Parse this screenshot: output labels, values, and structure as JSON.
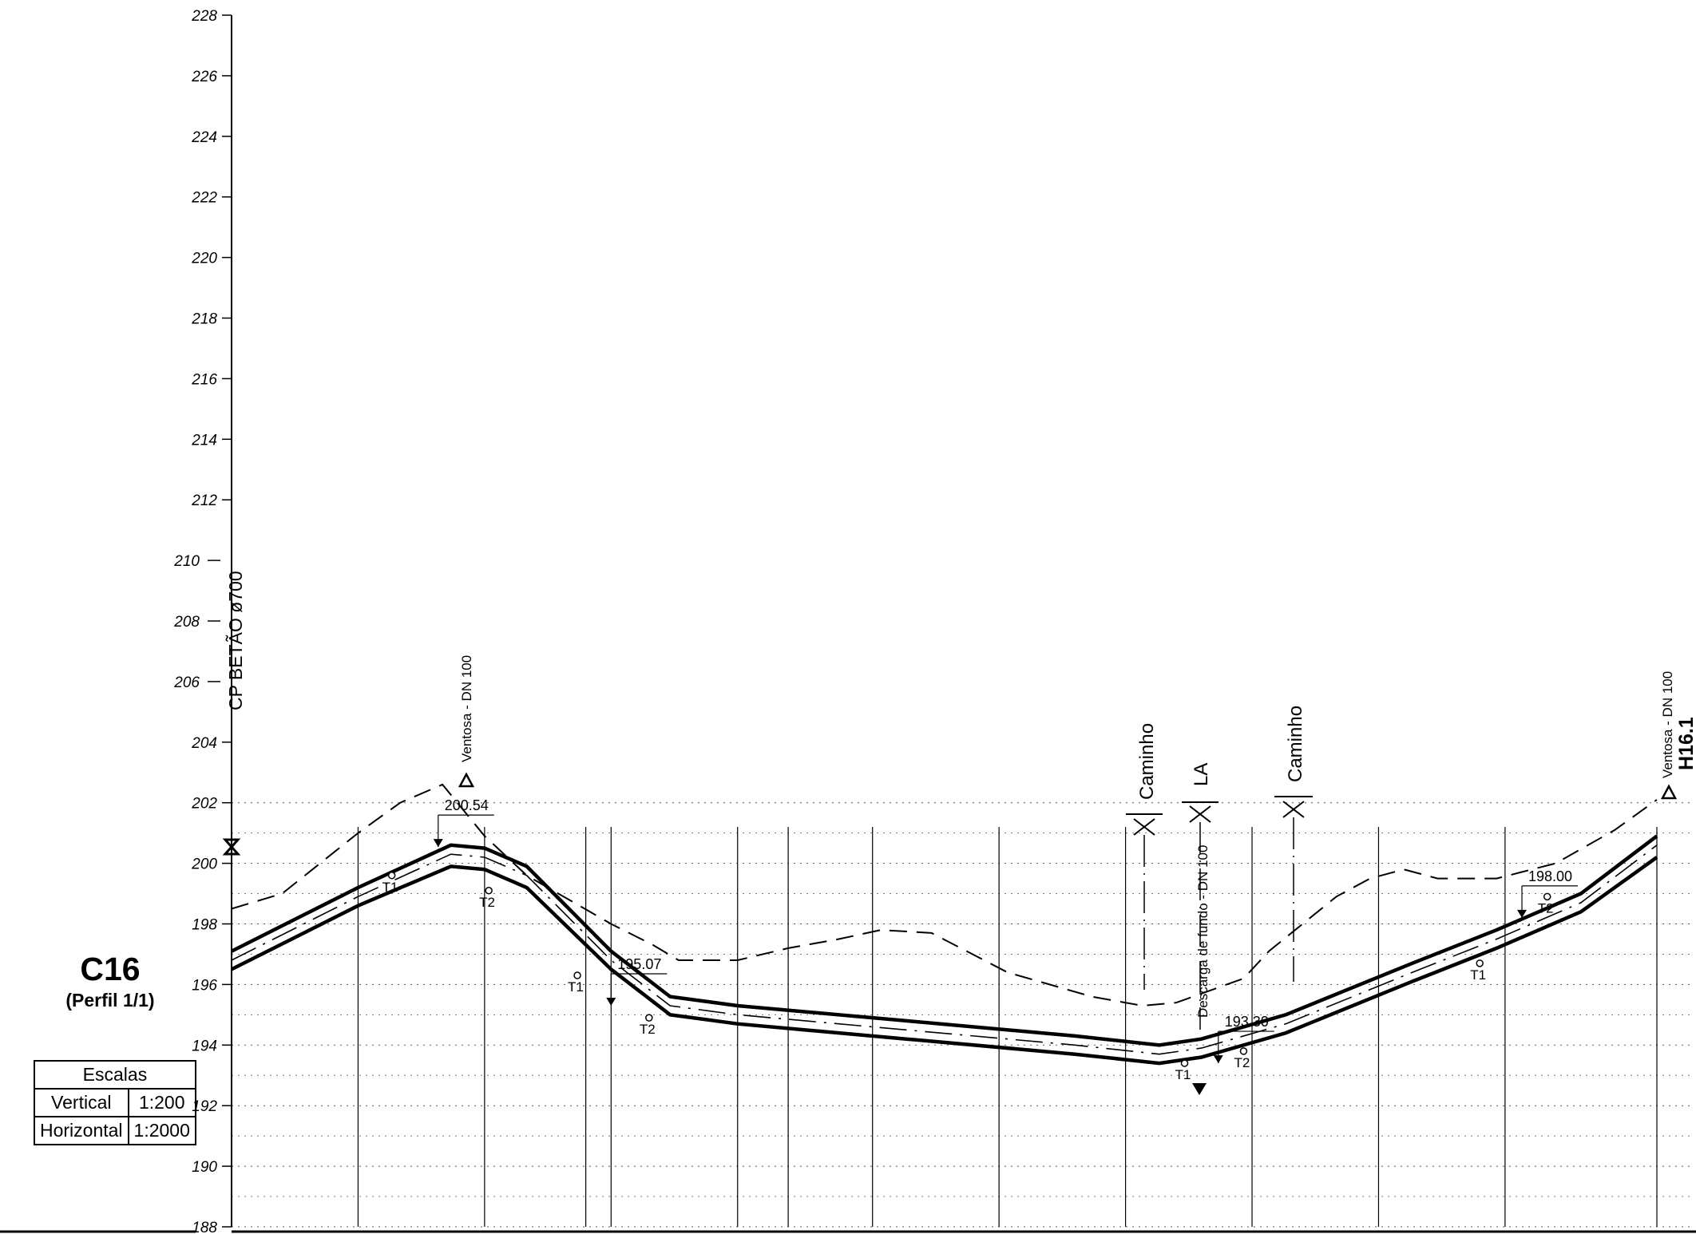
{
  "chart_data": {
    "type": "line",
    "title": "C16",
    "subtitle": "(Perfil 1/1)",
    "y_axis": {
      "ylim": [
        188,
        228
      ],
      "step": 2,
      "solid_from": 188,
      "solid_to": 204
    },
    "series": [
      {
        "role": "terrain-line",
        "style": "dashed",
        "points": [
          [
            0,
            198.5
          ],
          [
            0.6,
            199.0
          ],
          [
            1.5,
            201.0
          ],
          [
            2.0,
            202.0
          ],
          [
            2.5,
            202.6
          ],
          [
            3.0,
            200.9
          ],
          [
            3.5,
            199.6
          ],
          [
            4.5,
            198.0
          ],
          [
            5.0,
            197.3
          ],
          [
            5.3,
            196.8
          ],
          [
            6.0,
            196.8
          ],
          [
            6.6,
            197.2
          ],
          [
            7.2,
            197.5
          ],
          [
            7.7,
            197.8
          ],
          [
            8.3,
            197.7
          ],
          [
            9.2,
            196.4
          ],
          [
            10.2,
            195.6
          ],
          [
            10.8,
            195.3
          ],
          [
            11.2,
            195.4
          ],
          [
            11.5,
            195.7
          ],
          [
            12.0,
            196.2
          ],
          [
            12.3,
            197.1
          ],
          [
            12.7,
            198.0
          ],
          [
            13.1,
            198.9
          ],
          [
            13.5,
            199.5
          ],
          [
            13.9,
            199.8
          ],
          [
            14.3,
            199.5
          ],
          [
            15.0,
            199.5
          ],
          [
            15.7,
            200.0
          ],
          [
            16.4,
            201.1
          ],
          [
            16.9,
            202.1
          ]
        ]
      },
      {
        "role": "pipe-top",
        "style": "thick",
        "points": [
          [
            0,
            197.1
          ],
          [
            1.5,
            199.2
          ],
          [
            2.6,
            200.6
          ],
          [
            3.0,
            200.5
          ],
          [
            3.5,
            199.9
          ],
          [
            4.5,
            197.1
          ],
          [
            5.2,
            195.6
          ],
          [
            6.0,
            195.3
          ],
          [
            8.0,
            194.8
          ],
          [
            10.0,
            194.3
          ],
          [
            11.0,
            194.0
          ],
          [
            11.5,
            194.2
          ],
          [
            12.5,
            195.0
          ],
          [
            14.0,
            196.7
          ],
          [
            15.0,
            197.8
          ],
          [
            16.0,
            199.0
          ],
          [
            16.9,
            200.9
          ]
        ]
      },
      {
        "role": "pipe-axis",
        "style": "dashdot",
        "points": [
          [
            0,
            196.8
          ],
          [
            1.5,
            198.9
          ],
          [
            2.6,
            200.3
          ],
          [
            3.0,
            200.2
          ],
          [
            3.5,
            199.6
          ],
          [
            4.5,
            196.8
          ],
          [
            5.2,
            195.3
          ],
          [
            6.0,
            195.0
          ],
          [
            8.0,
            194.5
          ],
          [
            10.0,
            194.0
          ],
          [
            11.0,
            193.7
          ],
          [
            11.5,
            193.9
          ],
          [
            12.5,
            194.7
          ],
          [
            14.0,
            196.4
          ],
          [
            15.0,
            197.5
          ],
          [
            16.0,
            198.7
          ],
          [
            16.9,
            200.6
          ]
        ]
      },
      {
        "role": "pipe-bottom",
        "style": "thick",
        "points": [
          [
            0,
            196.5
          ],
          [
            1.5,
            198.6
          ],
          [
            2.6,
            199.9
          ],
          [
            3.0,
            199.8
          ],
          [
            3.5,
            199.2
          ],
          [
            4.5,
            196.5
          ],
          [
            5.2,
            195.0
          ],
          [
            6.0,
            194.7
          ],
          [
            8.0,
            194.2
          ],
          [
            10.0,
            193.7
          ],
          [
            11.0,
            193.4
          ],
          [
            11.5,
            193.6
          ],
          [
            12.5,
            194.4
          ],
          [
            14.0,
            196.1
          ],
          [
            15.0,
            197.2
          ],
          [
            16.0,
            198.4
          ],
          [
            16.9,
            200.2
          ]
        ]
      }
    ],
    "station_lines": [
      1.5,
      3.0,
      4.2,
      4.5,
      6.0,
      6.6,
      7.6,
      9.1,
      10.6,
      12.1,
      13.6,
      15.1,
      16.9
    ],
    "tangent_points": [
      {
        "label": "T1",
        "x": 1.9,
        "y": 199.6
      },
      {
        "label": "T2",
        "x": 3.05,
        "y": 199.1
      },
      {
        "label": "T1",
        "x": 4.1,
        "y": 196.3
      },
      {
        "label": "T2",
        "x": 4.95,
        "y": 194.9
      },
      {
        "label": "T1",
        "x": 11.3,
        "y": 193.4
      },
      {
        "label": "T2",
        "x": 12.0,
        "y": 193.8
      },
      {
        "label": "T1",
        "x": 14.8,
        "y": 196.7
      },
      {
        "label": "T2",
        "x": 15.6,
        "y": 198.9
      }
    ],
    "vertex_marks": [
      {
        "x": 2.45,
        "y": 200.54,
        "label": "200.54"
      },
      {
        "x": 4.5,
        "y": 195.3,
        "label": "195.07"
      },
      {
        "x": 11.7,
        "y": 193.4,
        "label": "193.30"
      },
      {
        "x": 15.3,
        "y": 198.2,
        "label": "198.00"
      }
    ]
  },
  "annotations": {
    "start_label": "CP BETÃO ø700",
    "end_label": "H16.1",
    "ventosa_1": "Ventosa - DN 100",
    "ventosa_2": "Ventosa - DN 100",
    "caminho_1": "Caminho",
    "la": "LA",
    "caminho_2": "Caminho",
    "descarga": "Descarga de fundo - DN 100"
  },
  "title_block": {
    "title": "C16",
    "subtitle": "(Perfil 1/1)"
  },
  "scales_table": {
    "header": "Escalas",
    "rows": [
      {
        "label": "Vertical",
        "value": "1:200"
      },
      {
        "label": "Horizontal",
        "value": "1:2000"
      }
    ]
  }
}
